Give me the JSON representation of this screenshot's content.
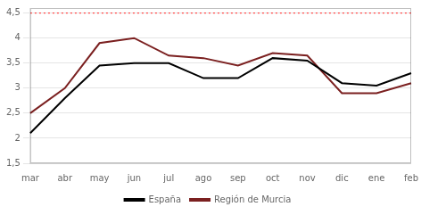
{
  "chart_data": {
    "type": "line",
    "categories": [
      "mar",
      "abr",
      "may",
      "jun",
      "jul",
      "ago",
      "sep",
      "oct",
      "nov",
      "dic",
      "ene",
      "feb"
    ],
    "series": [
      {
        "name": "España",
        "color": "#000000",
        "values": [
          2.1,
          2.8,
          3.45,
          3.5,
          3.5,
          3.2,
          3.2,
          3.6,
          3.55,
          3.1,
          3.05,
          3.3
        ]
      },
      {
        "name": "Región de Murcia",
        "color": "#7B2020",
        "values": [
          2.5,
          3.0,
          3.9,
          4.0,
          3.65,
          3.6,
          3.45,
          3.7,
          3.65,
          2.9,
          2.9,
          3.1
        ]
      }
    ],
    "hlines": [
      {
        "value": 4.5,
        "color": "#FF4444",
        "line_style": "dotted"
      }
    ],
    "ylim": [
      1.5,
      4.6
    ],
    "yticks": [
      {
        "value": 1.5,
        "label": "1,5"
      },
      2,
      {
        "value": 2.5,
        "label": "2,5"
      },
      3,
      {
        "value": 3.5,
        "label": "3,5"
      },
      4,
      {
        "value": 4.5,
        "label": "4,5"
      }
    ],
    "grid": "y",
    "legend": "bottom"
  }
}
